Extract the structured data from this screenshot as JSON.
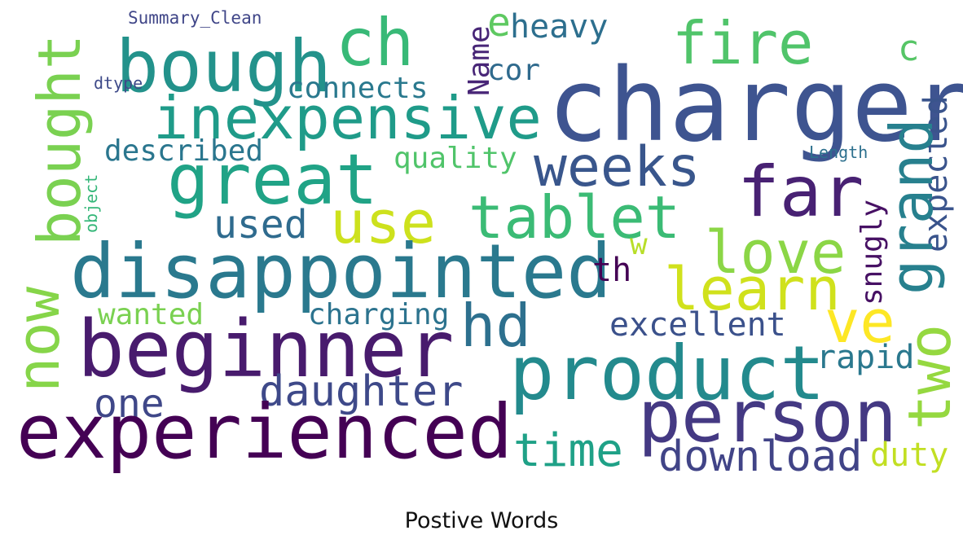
{
  "caption": "Postive Words",
  "words": [
    {
      "text": "charger",
      "color": "#3e5490"
    },
    {
      "text": "bough",
      "color": "#23928b"
    },
    {
      "text": "ch",
      "color": "#38b977"
    },
    {
      "text": "fire",
      "color": "#50c46a"
    },
    {
      "text": "heavy",
      "color": "#2d6f8e"
    },
    {
      "text": "e",
      "color": "#5ec961"
    },
    {
      "text": "c",
      "color": "#56c566"
    },
    {
      "text": "Summary_Clean",
      "color": "#404688"
    },
    {
      "text": "Name",
      "color": "#482677"
    },
    {
      "text": "cor",
      "color": "#2f6a8d"
    },
    {
      "text": "connects",
      "color": "#2a798e"
    },
    {
      "text": "dtype",
      "color": "#3e4a89"
    },
    {
      "text": "inexpensive",
      "color": "#1f9b89"
    },
    {
      "text": "bought",
      "color": "#7ad151"
    },
    {
      "text": "described",
      "color": "#2a768e"
    },
    {
      "text": "quality",
      "color": "#50c46a"
    },
    {
      "text": "weeks",
      "color": "#39568c"
    },
    {
      "text": "Length",
      "color": "#2d708e"
    },
    {
      "text": "expected",
      "color": "#3a548c"
    },
    {
      "text": "great",
      "color": "#20a386"
    },
    {
      "text": "far",
      "color": "#482173"
    },
    {
      "text": "grand",
      "color": "#27808e"
    },
    {
      "text": "object",
      "color": "#35b779"
    },
    {
      "text": "tablet",
      "color": "#3bbb75"
    },
    {
      "text": "use",
      "color": "#cde11d"
    },
    {
      "text": "used",
      "color": "#2f6b8e"
    },
    {
      "text": "snugly",
      "color": "#471164"
    },
    {
      "text": "love",
      "color": "#8bd646"
    },
    {
      "text": "w",
      "color": "#b8de29"
    },
    {
      "text": "disappointed",
      "color": "#2a798e"
    },
    {
      "text": "th",
      "color": "#440154"
    },
    {
      "text": "learn",
      "color": "#d0e11c"
    },
    {
      "text": "now",
      "color": "#86d549"
    },
    {
      "text": "wanted",
      "color": "#7ad151"
    },
    {
      "text": "charging",
      "color": "#2c738e"
    },
    {
      "text": "hd",
      "color": "#2d708e"
    },
    {
      "text": "ve",
      "color": "#fde725"
    },
    {
      "text": "excellent",
      "color": "#3b518b"
    },
    {
      "text": "beginner",
      "color": "#481b6d"
    },
    {
      "text": "product",
      "color": "#238a8d"
    },
    {
      "text": "two",
      "color": "#95d840"
    },
    {
      "text": "rapid",
      "color": "#2a788e"
    },
    {
      "text": "one",
      "color": "#3f4788"
    },
    {
      "text": "daughter",
      "color": "#3e4989"
    },
    {
      "text": "person",
      "color": "#443983"
    },
    {
      "text": "experienced",
      "color": "#440154"
    },
    {
      "text": "time",
      "color": "#1fa187"
    },
    {
      "text": "download",
      "color": "#414487"
    },
    {
      "text": "duty",
      "color": "#c2df23"
    }
  ]
}
